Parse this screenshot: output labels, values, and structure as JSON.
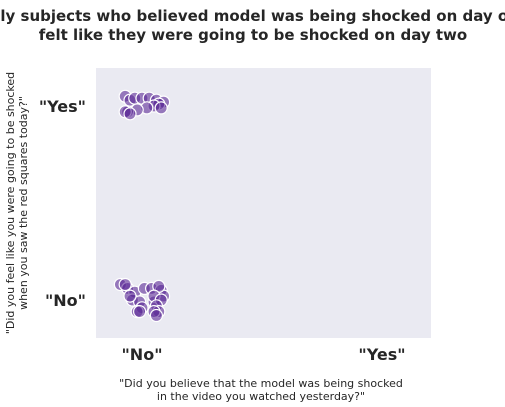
{
  "chart_data": {
    "type": "scatter",
    "title_lines": [
      "Only subjects who believed model was being shocked on day one",
      "felt like they were going to be shocked on day two"
    ],
    "xlabel_lines": [
      "\"Did you believe that the model was being shocked",
      "in the video you watched yesterday?\""
    ],
    "ylabel_lines": [
      "\"Did you feel like you were going to be shocked",
      "when you saw the red squares today?\""
    ],
    "x_categories": [
      "\"No\"",
      "\"Yes\""
    ],
    "y_categories": [
      "\"No\"",
      "\"Yes\""
    ],
    "grid": false,
    "background_color": "#eaeaf2",
    "point_color": "#5b2a96",
    "points": [
      {
        "x": -0.09,
        "y": 0.08
      },
      {
        "x": -0.06,
        "y": 0.06
      },
      {
        "x": -0.03,
        "y": 0.04
      },
      {
        "x": 0.01,
        "y": 0.06
      },
      {
        "x": 0.04,
        "y": 0.06
      },
      {
        "x": 0.08,
        "y": 0.05
      },
      {
        "x": 0.09,
        "y": 0.02
      },
      {
        "x": -0.04,
        "y": 0.0
      },
      {
        "x": -0.01,
        "y": -0.01
      },
      {
        "x": 0.05,
        "y": -0.01
      },
      {
        "x": 0.0,
        "y": -0.04
      },
      {
        "x": -0.02,
        "y": -0.06
      },
      {
        "x": -0.07,
        "y": 1.05
      },
      {
        "x": -0.05,
        "y": 1.03
      },
      {
        "x": -0.03,
        "y": 1.04
      },
      {
        "x": 0.0,
        "y": 1.04
      },
      {
        "x": 0.03,
        "y": 1.04
      },
      {
        "x": 0.06,
        "y": 1.03
      },
      {
        "x": 0.09,
        "y": 1.02
      },
      {
        "x": 0.07,
        "y": 1.01
      },
      {
        "x": 0.05,
        "y": 1.0
      },
      {
        "x": 0.02,
        "y": 0.99
      },
      {
        "x": 0.08,
        "y": 0.99
      },
      {
        "x": -0.02,
        "y": 0.98
      },
      {
        "x": -0.06,
        "y": 0.97
      },
      {
        "x": -0.07,
        "y": 0.97
      },
      {
        "x": -0.05,
        "y": 0.96
      },
      {
        "x": -0.07,
        "y": 0.08
      },
      {
        "x": 0.07,
        "y": 0.07
      },
      {
        "x": -0.05,
        "y": 0.02
      },
      {
        "x": 0.05,
        "y": 0.02
      },
      {
        "x": 0.08,
        "y": 0.0
      },
      {
        "x": 0.06,
        "y": -0.03
      },
      {
        "x": 0.07,
        "y": -0.06
      },
      {
        "x": 0.05,
        "y": -0.06
      },
      {
        "x": -0.01,
        "y": -0.06
      },
      {
        "x": 0.06,
        "y": -0.08
      }
    ]
  }
}
